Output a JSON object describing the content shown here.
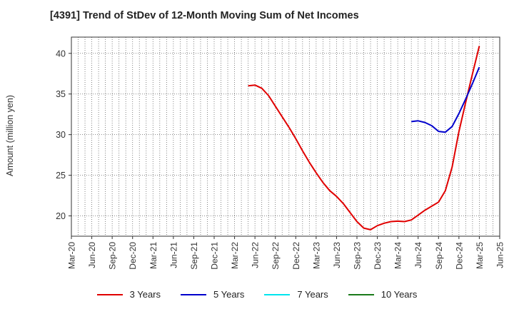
{
  "chart_data": {
    "type": "line",
    "title": "[4391]  Trend of StDev of 12-Month Moving Sum of Net Incomes",
    "ylabel": "Amount (million yen)",
    "xlabel": "",
    "x_tick_labels": [
      "Mar-20",
      "Jun-20",
      "Sep-20",
      "Dec-20",
      "Mar-21",
      "Jun-21",
      "Sep-21",
      "Dec-21",
      "Mar-22",
      "Jun-22",
      "Sep-22",
      "Dec-22",
      "Mar-23",
      "Jun-23",
      "Sep-23",
      "Dec-23",
      "Mar-24",
      "Jun-24",
      "Sep-24",
      "Dec-24",
      "Mar-25",
      "Jun-25"
    ],
    "y_ticks": [
      20,
      25,
      30,
      35,
      40
    ],
    "ylim": [
      17.5,
      42
    ],
    "grid": true,
    "legend_position": "bottom",
    "series": [
      {
        "name": "3 Years",
        "color": "#e00000",
        "points": [
          [
            "May-22",
            36.0
          ],
          [
            "Jun-22",
            36.1
          ],
          [
            "Jul-22",
            35.7
          ],
          [
            "Aug-22",
            34.8
          ],
          [
            "Sep-22",
            33.5
          ],
          [
            "Oct-22",
            32.2
          ],
          [
            "Nov-22",
            30.9
          ],
          [
            "Dec-22",
            29.5
          ],
          [
            "Jan-23",
            28.0
          ],
          [
            "Feb-23",
            26.6
          ],
          [
            "Mar-23",
            25.3
          ],
          [
            "Apr-23",
            24.1
          ],
          [
            "May-23",
            23.1
          ],
          [
            "Jun-23",
            22.4
          ],
          [
            "Jul-23",
            21.5
          ],
          [
            "Aug-23",
            20.4
          ],
          [
            "Sep-23",
            19.3
          ],
          [
            "Oct-23",
            18.5
          ],
          [
            "Nov-23",
            18.3
          ],
          [
            "Dec-23",
            18.8
          ],
          [
            "Jan-24",
            19.1
          ],
          [
            "Feb-24",
            19.3
          ],
          [
            "Mar-24",
            19.35
          ],
          [
            "Apr-24",
            19.3
          ],
          [
            "May-24",
            19.5
          ],
          [
            "Jun-24",
            20.1
          ],
          [
            "Jul-24",
            20.7
          ],
          [
            "Aug-24",
            21.2
          ],
          [
            "Sep-24",
            21.7
          ],
          [
            "Oct-24",
            23.1
          ],
          [
            "Nov-24",
            26.0
          ],
          [
            "Dec-24",
            30.4
          ],
          [
            "Jan-25",
            34.0
          ],
          [
            "Feb-25",
            37.5
          ],
          [
            "Mar-25",
            40.9
          ]
        ]
      },
      {
        "name": "5 Years",
        "color": "#0000cc",
        "points": [
          [
            "May-24",
            31.6
          ],
          [
            "Jun-24",
            31.7
          ],
          [
            "Jul-24",
            31.5
          ],
          [
            "Aug-24",
            31.1
          ],
          [
            "Sep-24",
            30.4
          ],
          [
            "Oct-24",
            30.3
          ],
          [
            "Nov-24",
            31.0
          ],
          [
            "Dec-24",
            32.6
          ],
          [
            "Jan-25",
            34.4
          ],
          [
            "Feb-25",
            36.3
          ],
          [
            "Mar-25",
            38.3
          ]
        ]
      },
      {
        "name": "7 Years",
        "color": "#00e5ee",
        "points": []
      },
      {
        "name": "10 Years",
        "color": "#1a7a1a",
        "points": []
      }
    ]
  }
}
